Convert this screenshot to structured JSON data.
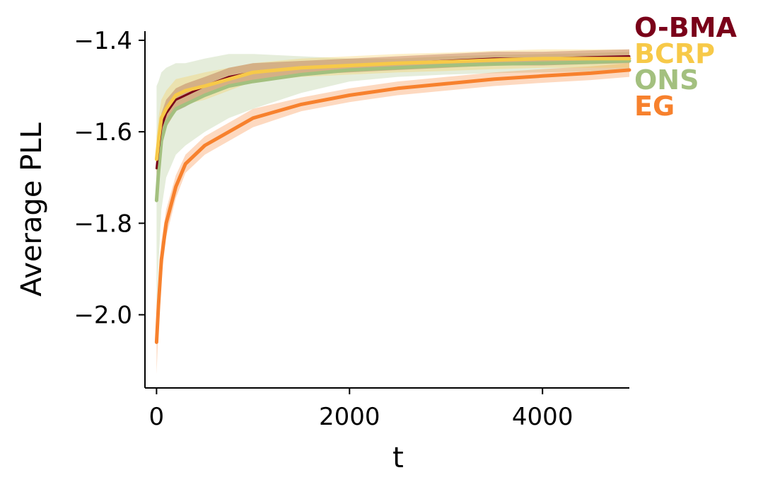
{
  "chart_data": {
    "type": "line",
    "title": "",
    "xlabel": "t",
    "ylabel": "Average PLL",
    "xlim": [
      -120,
      4900
    ],
    "ylim": [
      -2.16,
      -1.38
    ],
    "xticks": [
      0,
      2000,
      4000
    ],
    "xtick_labels": [
      "0",
      "2000",
      "4000"
    ],
    "yticks": [
      -2.0,
      -1.8,
      -1.6,
      -1.4
    ],
    "ytick_labels": [
      "−2.0",
      "−1.8",
      "−1.6",
      "−1.4"
    ],
    "grid": false,
    "legend_position": "top-right, outside plot",
    "x": [
      0,
      20,
      50,
      100,
      200,
      300,
      500,
      750,
      1000,
      1500,
      2000,
      2500,
      3000,
      3500,
      4000,
      4500,
      4900
    ],
    "series": [
      {
        "name": "O-BMA",
        "color": "#7a0019",
        "values": [
          -1.68,
          -1.64,
          -1.59,
          -1.56,
          -1.53,
          -1.52,
          -1.5,
          -1.48,
          -1.47,
          -1.46,
          -1.455,
          -1.45,
          -1.445,
          -1.44,
          -1.44,
          -1.437,
          -1.435
        ],
        "band_width": [
          0.03,
          0.03,
          0.03,
          0.03,
          0.025,
          0.025,
          0.02,
          0.02,
          0.02,
          0.015,
          0.015,
          0.015,
          0.015,
          0.015,
          0.015,
          0.015,
          0.015
        ]
      },
      {
        "name": "BCRP",
        "color": "#f7c948",
        "values": [
          -1.66,
          -1.62,
          -1.57,
          -1.55,
          -1.52,
          -1.51,
          -1.5,
          -1.485,
          -1.47,
          -1.46,
          -1.455,
          -1.45,
          -1.447,
          -1.443,
          -1.44,
          -1.44,
          -1.44
        ],
        "band_width": [
          0.05,
          0.05,
          0.04,
          0.04,
          0.035,
          0.03,
          0.03,
          0.025,
          0.02,
          0.02,
          0.02,
          0.02,
          0.02,
          0.02,
          0.02,
          0.02,
          0.02
        ]
      },
      {
        "name": "ONS",
        "color": "#a3c07f",
        "values": [
          -1.75,
          -1.69,
          -1.62,
          -1.58,
          -1.55,
          -1.54,
          -1.52,
          -1.5,
          -1.49,
          -1.475,
          -1.465,
          -1.46,
          -1.455,
          -1.452,
          -1.45,
          -1.448,
          -1.445
        ],
        "band_width": [
          0.25,
          0.2,
          0.15,
          0.12,
          0.1,
          0.09,
          0.08,
          0.07,
          0.06,
          0.04,
          0.025,
          0.02,
          0.02,
          0.02,
          0.02,
          0.02,
          0.02
        ]
      },
      {
        "name": "EG",
        "color": "#f7812d",
        "values": [
          -2.06,
          -1.98,
          -1.88,
          -1.8,
          -1.72,
          -1.67,
          -1.63,
          -1.6,
          -1.57,
          -1.54,
          -1.52,
          -1.505,
          -1.495,
          -1.485,
          -1.478,
          -1.472,
          -1.465
        ],
        "band_width": [
          0.07,
          0.05,
          0.04,
          0.03,
          0.025,
          0.02,
          0.02,
          0.02,
          0.02,
          0.015,
          0.015,
          0.015,
          0.015,
          0.015,
          0.015,
          0.015,
          0.015
        ]
      }
    ]
  }
}
